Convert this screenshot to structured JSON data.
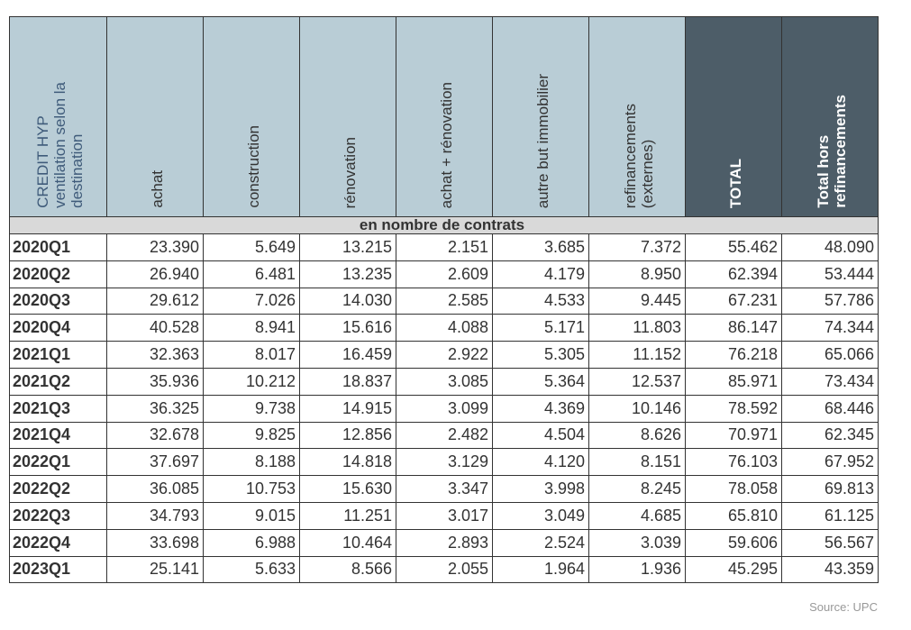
{
  "table": {
    "headers": [
      [
        "CREDIT HYP",
        "ventilation selon la",
        "destination"
      ],
      [
        "achat"
      ],
      [
        "construction"
      ],
      [
        "rénovation"
      ],
      [
        "achat + rénovation"
      ],
      [
        "autre but immobilier"
      ],
      [
        "refinancements",
        "(externes)"
      ],
      [
        "TOTAL"
      ],
      [
        "Total hors",
        "refinancements"
      ]
    ],
    "subheader": "en nombre de contrats",
    "rows": [
      [
        "2020Q1",
        "23.390",
        "5.649",
        "13.215",
        "2.151",
        "3.685",
        "7.372",
        "55.462",
        "48.090"
      ],
      [
        "2020Q2",
        "26.940",
        "6.481",
        "13.235",
        "2.609",
        "4.179",
        "8.950",
        "62.394",
        "53.444"
      ],
      [
        "2020Q3",
        "29.612",
        "7.026",
        "14.030",
        "2.585",
        "4.533",
        "9.445",
        "67.231",
        "57.786"
      ],
      [
        "2020Q4",
        "40.528",
        "8.941",
        "15.616",
        "4.088",
        "5.171",
        "11.803",
        "86.147",
        "74.344"
      ],
      [
        "2021Q1",
        "32.363",
        "8.017",
        "16.459",
        "2.922",
        "5.305",
        "11.152",
        "76.218",
        "65.066"
      ],
      [
        "2021Q2",
        "35.936",
        "10.212",
        "18.837",
        "3.085",
        "5.364",
        "12.537",
        "85.971",
        "73.434"
      ],
      [
        "2021Q3",
        "36.325",
        "9.738",
        "14.915",
        "3.099",
        "4.369",
        "10.146",
        "78.592",
        "68.446"
      ],
      [
        "2021Q4",
        "32.678",
        "9.825",
        "12.856",
        "2.482",
        "4.504",
        "8.626",
        "70.971",
        "62.345"
      ],
      [
        "2022Q1",
        "37.697",
        "8.188",
        "14.818",
        "3.129",
        "4.120",
        "8.151",
        "76.103",
        "67.952"
      ],
      [
        "2022Q2",
        "36.085",
        "10.753",
        "15.630",
        "3.347",
        "3.998",
        "8.245",
        "78.058",
        "69.813"
      ],
      [
        "2022Q3",
        "34.793",
        "9.015",
        "11.251",
        "3.017",
        "3.049",
        "4.685",
        "65.810",
        "61.125"
      ],
      [
        "2022Q4",
        "33.698",
        "6.988",
        "10.464",
        "2.893",
        "2.524",
        "3.039",
        "59.606",
        "56.567"
      ],
      [
        "2023Q1",
        "25.141",
        "5.633",
        "8.566",
        "2.055",
        "1.964",
        "1.936",
        "45.295",
        "43.359"
      ]
    ]
  },
  "source": "Source: UPC"
}
